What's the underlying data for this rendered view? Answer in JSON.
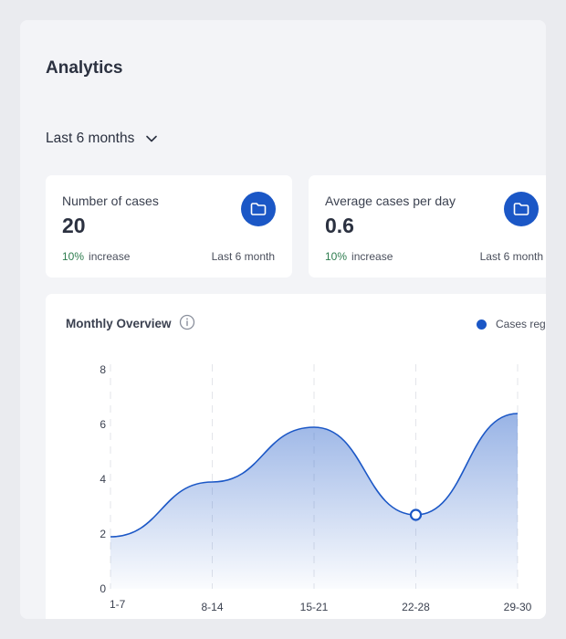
{
  "page": {
    "title": "Analytics"
  },
  "filter": {
    "label": "Last 6 months"
  },
  "cards": [
    {
      "label": "Number of cases",
      "value": "20",
      "change": "10%",
      "change_text": "increase",
      "period": "Last 6 month",
      "icon": "folder-icon"
    },
    {
      "label": "Average cases per day",
      "value": "0.6",
      "change": "10%",
      "change_text": "increase",
      "period": "Last 6 month",
      "icon": "folder-icon"
    }
  ],
  "colors": {
    "accent": "#1b57c6",
    "increase": "#2e7d4f",
    "background": "#f3f4f7"
  },
  "chart": {
    "title": "Monthly Overview",
    "legend": "Cases registered"
  },
  "chart_data": {
    "type": "area",
    "title": "Monthly Overview",
    "categories": [
      "1-7",
      "8-14",
      "15-21",
      "22-28",
      "29-30"
    ],
    "series": [
      {
        "name": "Cases registered",
        "values": [
          1.9,
          3.9,
          5.9,
          2.7,
          6.4
        ]
      }
    ],
    "highlighted_point": "22-28",
    "ylim": [
      0,
      8
    ],
    "yticks": [
      0,
      2,
      4,
      6,
      8
    ],
    "grid": "vertical dashed",
    "legend_position": "top-right"
  }
}
